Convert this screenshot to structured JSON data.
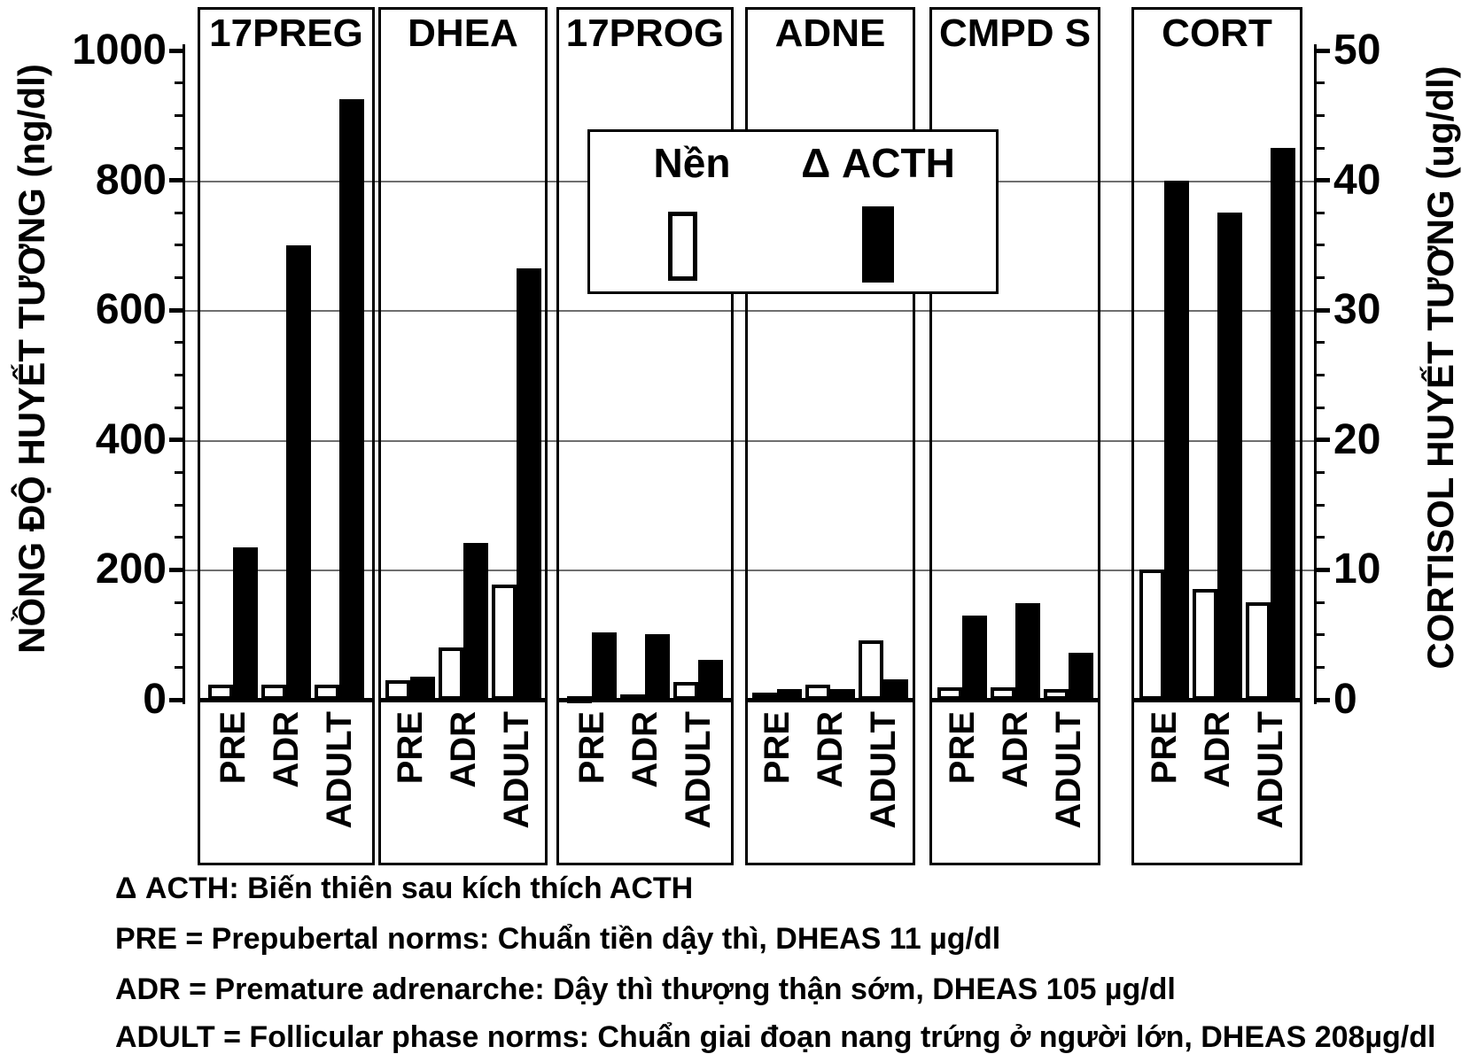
{
  "chart_data": {
    "type": "bar",
    "title": "",
    "left_axis": {
      "label": "NỒNG ĐỘ HUYẾT TƯƠNG (ng/dl)",
      "min": 0,
      "max": 1000,
      "major_step": 200,
      "minor_step": 50,
      "tick_labels": [
        "0",
        "200",
        "400",
        "600",
        "800",
        "1000"
      ]
    },
    "right_axis": {
      "label": "CORTISOL HUYẾT TƯƠNG (ug/dl)",
      "min": 0,
      "max": 50,
      "major_step": 10,
      "minor_step": 2.5,
      "tick_labels": [
        "0",
        "10",
        "20",
        "30",
        "40",
        "50"
      ]
    },
    "categories": [
      "PRE",
      "ADR",
      "ADULT"
    ],
    "series": [
      {
        "name": "Nền",
        "style": "white"
      },
      {
        "name": "Δ ACTH",
        "style": "black"
      }
    ],
    "gridlines_left_values": [
      200,
      400,
      600,
      800
    ],
    "panels": [
      {
        "name": "17PREG",
        "axis": "left",
        "unit": "ng/dl",
        "groups": [
          {
            "cat": "PRE",
            "nen": 23,
            "acth": 235
          },
          {
            "cat": "ADR",
            "nen": 23,
            "acth": 700
          },
          {
            "cat": "ADULT",
            "nen": 23,
            "acth": 925
          }
        ]
      },
      {
        "name": "DHEA",
        "axis": "left",
        "unit": "ng/dl",
        "groups": [
          {
            "cat": "PRE",
            "nen": 30,
            "acth": 35
          },
          {
            "cat": "ADR",
            "nen": 81,
            "acth": 242
          },
          {
            "cat": "ADULT",
            "nen": 177,
            "acth": 665
          }
        ]
      },
      {
        "name": "17PROG",
        "axis": "left",
        "unit": "ng/dl",
        "groups": [
          {
            "cat": "PRE",
            "nen": 5,
            "acth": 104
          },
          {
            "cat": "ADR",
            "nen": 8,
            "acth": 101
          },
          {
            "cat": "ADULT",
            "nen": 27,
            "acth": 62
          }
        ]
      },
      {
        "name": "ADNE",
        "axis": "left",
        "unit": "ng/dl",
        "groups": [
          {
            "cat": "PRE",
            "nen": 11,
            "acth": 16
          },
          {
            "cat": "ADR",
            "nen": 23,
            "acth": 17
          },
          {
            "cat": "ADULT",
            "nen": 91,
            "acth": 31
          }
        ]
      },
      {
        "name": "CMPD S",
        "axis": "left",
        "unit": "ng/dl",
        "groups": [
          {
            "cat": "PRE",
            "nen": 19,
            "acth": 130
          },
          {
            "cat": "ADR",
            "nen": 19,
            "acth": 149
          },
          {
            "cat": "ADULT",
            "nen": 17,
            "acth": 72
          }
        ]
      },
      {
        "name": "CORT",
        "axis": "right",
        "unit": "ug/dl",
        "groups": [
          {
            "cat": "PRE",
            "nen": 10,
            "acth": 40
          },
          {
            "cat": "ADR",
            "nen": 8.5,
            "acth": 37.5
          },
          {
            "cat": "ADULT",
            "nen": 7.5,
            "acth": 42.5
          }
        ]
      }
    ]
  },
  "legend": {
    "nen_label": "Nền",
    "acth_label": "Δ ACTH"
  },
  "footer": {
    "lines": [
      "Δ ACTH: Biến thiên sau kích thích ACTH",
      "PRE = Prepubertal norms: Chuẩn tiền dậy thì, DHEAS 11 µg/dl",
      "ADR = Premature adrenarche: Dậy thì thượng thận sớm, DHEAS 105 µg/dl",
      "ADULT = Follicular phase norms: Chuẩn giai đoạn nang trứng ở người lớn, DHEAS 208µg/dl"
    ]
  }
}
